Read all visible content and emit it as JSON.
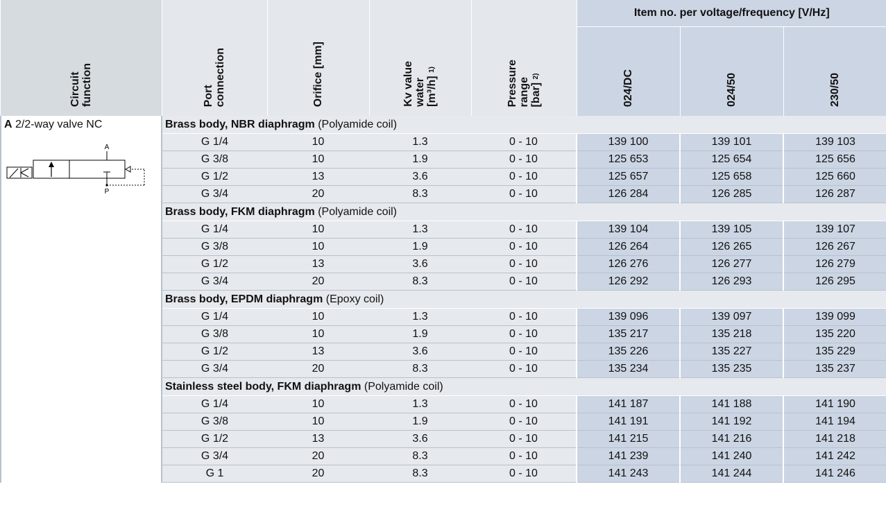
{
  "header": {
    "circuit_function": "Circuit\nfunction",
    "port_connection": "Port\nconnection",
    "orifice": "Orifice [mm]",
    "kv_label": "Kv value\nwater\n[m³/h]",
    "kv_note": "1)",
    "pressure_label": "Pressure\nrange\n[bar]",
    "pressure_note": "2)",
    "item_group": "Item no. per voltage/frequency [V/Hz]",
    "voltages": [
      "024/DC",
      "024/50",
      "230/50"
    ]
  },
  "circuit": {
    "letter": "A",
    "description": "2/2-way valve NC",
    "symbol_port_a": "A",
    "symbol_port_p": "P"
  },
  "sections": [
    {
      "title_bold": "Brass body, NBR diaphragm",
      "title_rest": "(Polyamide coil)",
      "rows": [
        {
          "port": "G 1/4",
          "orifice": "10",
          "kv": "1.3",
          "pressure": "0 - 10",
          "items": [
            "139 100",
            "139 101",
            "139 103"
          ]
        },
        {
          "port": "G 3/8",
          "orifice": "10",
          "kv": "1.9",
          "pressure": "0 - 10",
          "items": [
            "125 653",
            "125 654",
            "125 656"
          ]
        },
        {
          "port": "G 1/2",
          "orifice": "13",
          "kv": "3.6",
          "pressure": "0 - 10",
          "items": [
            "125 657",
            "125 658",
            "125 660"
          ]
        },
        {
          "port": "G 3/4",
          "orifice": "20",
          "kv": "8.3",
          "pressure": "0 - 10",
          "items": [
            "126 284",
            "126 285",
            "126 287"
          ]
        }
      ]
    },
    {
      "title_bold": "Brass body, FKM diaphragm",
      "title_rest": "(Polyamide coil)",
      "rows": [
        {
          "port": "G 1/4",
          "orifice": "10",
          "kv": "1.3",
          "pressure": "0 - 10",
          "items": [
            "139 104",
            "139 105",
            "139 107"
          ]
        },
        {
          "port": "G 3/8",
          "orifice": "10",
          "kv": "1.9",
          "pressure": "0 - 10",
          "items": [
            "126 264",
            "126 265",
            "126 267"
          ]
        },
        {
          "port": "G 1/2",
          "orifice": "13",
          "kv": "3.6",
          "pressure": "0 - 10",
          "items": [
            "126 276",
            "126 277",
            "126 279"
          ]
        },
        {
          "port": "G 3/4",
          "orifice": "20",
          "kv": "8.3",
          "pressure": "0 - 10",
          "items": [
            "126 292",
            "126 293",
            "126 295"
          ]
        }
      ]
    },
    {
      "title_bold": "Brass body, EPDM diaphragm",
      "title_rest": "(Epoxy coil)",
      "rows": [
        {
          "port": "G 1/4",
          "orifice": "10",
          "kv": "1.3",
          "pressure": "0 - 10",
          "items": [
            "139 096",
            "139 097",
            "139 099"
          ]
        },
        {
          "port": "G 3/8",
          "orifice": "10",
          "kv": "1.9",
          "pressure": "0 - 10",
          "items": [
            "135 217",
            "135 218",
            "135 220"
          ]
        },
        {
          "port": "G 1/2",
          "orifice": "13",
          "kv": "3.6",
          "pressure": "0 - 10",
          "items": [
            "135 226",
            "135 227",
            "135 229"
          ]
        },
        {
          "port": "G 3/4",
          "orifice": "20",
          "kv": "8.3",
          "pressure": "0 - 10",
          "items": [
            "135 234",
            "135 235",
            "135 237"
          ]
        }
      ]
    },
    {
      "title_bold": "Stainless steel body, FKM diaphragm",
      "title_rest": "(Polyamide coil)",
      "rows": [
        {
          "port": "G 1/4",
          "orifice": "10",
          "kv": "1.3",
          "pressure": "0 - 10",
          "items": [
            "141 187",
            "141 188",
            "141 190"
          ]
        },
        {
          "port": "G 3/8",
          "orifice": "10",
          "kv": "1.9",
          "pressure": "0 - 10",
          "items": [
            "141 191",
            "141 192",
            "141 194"
          ]
        },
        {
          "port": "G 1/2",
          "orifice": "13",
          "kv": "3.6",
          "pressure": "0 - 10",
          "items": [
            "141 215",
            "141 216",
            "141 218"
          ]
        },
        {
          "port": "G 3/4",
          "orifice": "20",
          "kv": "8.3",
          "pressure": "0 - 10",
          "items": [
            "141 239",
            "141 240",
            "141 242"
          ]
        },
        {
          "port": "G 1",
          "orifice": "20",
          "kv": "8.3",
          "pressure": "0 - 10",
          "items": [
            "141 243",
            "141 244",
            "141 246"
          ]
        }
      ]
    }
  ]
}
